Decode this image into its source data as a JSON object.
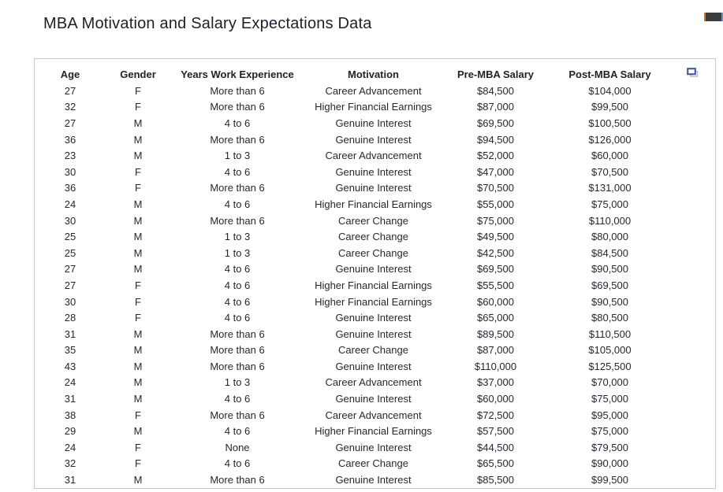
{
  "page": {
    "title": "MBA Motivation and Salary Expectations Data"
  },
  "colors": {
    "title_text": "#20202e",
    "table_text": "#262730",
    "table_border": "#c9c9c9",
    "fullscreen_icon_front": "#4a54a0",
    "fullscreen_icon_back": "#b3b7d9",
    "widget_body": "#3d3d3d",
    "widget_left_edge": "#c97c3c",
    "widget_right_edge": "#5b9bd5"
  },
  "icons": {
    "fullscreen": "fullscreen-icon"
  },
  "table": {
    "headers": [
      "Age",
      "Gender",
      "Years Work Experience",
      "Motivation",
      "Pre-MBA Salary",
      "Post-MBA Salary"
    ],
    "rows": [
      [
        "27",
        "F",
        "More than 6",
        "Career Advancement",
        "$84,500",
        "$104,000"
      ],
      [
        "32",
        "F",
        "More than 6",
        "Higher Financial Earnings",
        "$87,000",
        "$99,500"
      ],
      [
        "27",
        "M",
        "4 to 6",
        "Genuine Interest",
        "$69,500",
        "$100,500"
      ],
      [
        "36",
        "M",
        "More than 6",
        "Genuine Interest",
        "$94,500",
        "$126,000"
      ],
      [
        "23",
        "M",
        "1 to 3",
        "Career Advancement",
        "$52,000",
        "$60,000"
      ],
      [
        "30",
        "F",
        "4 to 6",
        "Genuine Interest",
        "$47,000",
        "$70,500"
      ],
      [
        "36",
        "F",
        "More than 6",
        "Genuine Interest",
        "$70,500",
        "$131,000"
      ],
      [
        "24",
        "M",
        "4 to 6",
        "Higher Financial Earnings",
        "$55,000",
        "$75,000"
      ],
      [
        "30",
        "M",
        "More than 6",
        "Career Change",
        "$75,000",
        "$110,000"
      ],
      [
        "25",
        "M",
        "1 to 3",
        "Career Change",
        "$49,500",
        "$80,000"
      ],
      [
        "25",
        "M",
        "1 to 3",
        "Career Change",
        "$42,500",
        "$84,500"
      ],
      [
        "27",
        "M",
        "4 to 6",
        "Genuine Interest",
        "$69,500",
        "$90,500"
      ],
      [
        "27",
        "F",
        "4 to 6",
        "Higher Financial Earnings",
        "$55,500",
        "$69,500"
      ],
      [
        "30",
        "F",
        "4 to 6",
        "Higher Financial Earnings",
        "$60,000",
        "$90,500"
      ],
      [
        "28",
        "F",
        "4 to 6",
        "Genuine Interest",
        "$65,000",
        "$80,500"
      ],
      [
        "31",
        "M",
        "More than 6",
        "Genuine Interest",
        "$89,500",
        "$110,500"
      ],
      [
        "35",
        "M",
        "More than 6",
        "Career Change",
        "$87,000",
        "$105,000"
      ],
      [
        "43",
        "M",
        "More than 6",
        "Genuine Interest",
        "$110,000",
        "$125,500"
      ],
      [
        "24",
        "M",
        "1 to 3",
        "Career Advancement",
        "$37,000",
        "$70,000"
      ],
      [
        "31",
        "M",
        "4 to 6",
        "Genuine Interest",
        "$60,000",
        "$75,000"
      ],
      [
        "38",
        "F",
        "More than 6",
        "Career Advancement",
        "$72,500",
        "$95,000"
      ],
      [
        "29",
        "M",
        "4 to 6",
        "Higher Financial Earnings",
        "$57,500",
        "$75,000"
      ],
      [
        "24",
        "F",
        "None",
        "Genuine Interest",
        "$44,500",
        "$79,500"
      ],
      [
        "32",
        "F",
        "4 to 6",
        "Career Change",
        "$65,500",
        "$90,000"
      ],
      [
        "31",
        "M",
        "More than 6",
        "Genuine Interest",
        "$85,500",
        "$99,500"
      ]
    ]
  }
}
